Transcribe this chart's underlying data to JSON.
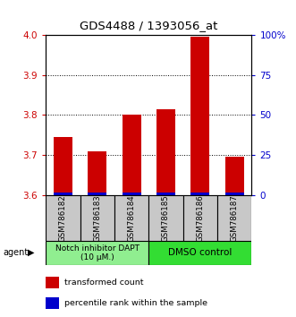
{
  "title": "GDS4488 / 1393056_at",
  "samples": [
    "GSM786182",
    "GSM786183",
    "GSM786184",
    "GSM786185",
    "GSM786186",
    "GSM786187"
  ],
  "red_values": [
    3.745,
    3.71,
    3.8,
    3.815,
    3.995,
    3.695
  ],
  "blue_values": [
    3.602,
    3.602,
    3.602,
    3.602,
    3.602,
    3.602
  ],
  "ylim_left": [
    3.6,
    4.0
  ],
  "yticks_left": [
    3.6,
    3.7,
    3.8,
    3.9,
    4.0
  ],
  "yticks_right": [
    0,
    25,
    50,
    75,
    100
  ],
  "ytick_labels_right": [
    "0",
    "25",
    "50",
    "75",
    "100%"
  ],
  "group1_label": "Notch inhibitor DAPT\n(10 μM.)",
  "group2_label": "DMSO control",
  "group1_color": "#90EE90",
  "group2_color": "#33DD33",
  "bar_color_red": "#CC0000",
  "bar_color_blue": "#0000CC",
  "bar_width": 0.55,
  "legend_red": "transformed count",
  "legend_blue": "percentile rank within the sample",
  "agent_label": "agent",
  "tick_label_color_left": "#CC0000",
  "tick_label_color_right": "#0000CC",
  "sample_box_color": "#C8C8C8",
  "gridline_ticks": [
    3.7,
    3.8,
    3.9
  ]
}
